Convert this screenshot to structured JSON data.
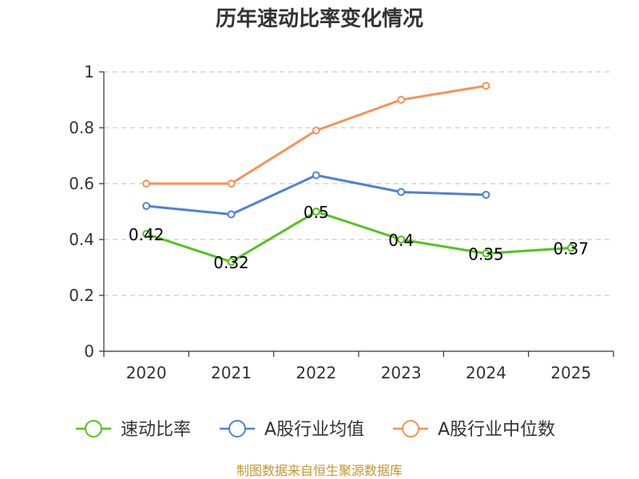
{
  "chart_data": {
    "type": "line",
    "title": "历年速动比率变化情况",
    "categories": [
      "2020",
      "2021",
      "2022",
      "2023",
      "2024",
      "2025"
    ],
    "ylim": [
      0,
      1
    ],
    "yticks": [
      "0",
      "0.2",
      "0.4",
      "0.6",
      "0.8",
      "1"
    ],
    "ytick_values": [
      0,
      0.2,
      0.4,
      0.6,
      0.8,
      1
    ],
    "grid": true,
    "legend_position": "bottom",
    "series": [
      {
        "name": "速动比率",
        "color": "#52c41a",
        "values": [
          0.42,
          0.32,
          0.5,
          0.4,
          0.35,
          0.37
        ],
        "labels": [
          "0.42",
          "0.32",
          "0.5",
          "0.4",
          "0.35",
          "0.37"
        ]
      },
      {
        "name": "A股行业均值",
        "color": "#4f81d9",
        "values": [
          0.52,
          0.49,
          0.63,
          0.57,
          0.56,
          null
        ]
      },
      {
        "name": "A股行业中位数",
        "color": "#f79257",
        "values": [
          0.6,
          0.6,
          0.79,
          0.9,
          0.95,
          null
        ]
      }
    ],
    "source": "制图数据来自恒生聚源数据库"
  }
}
